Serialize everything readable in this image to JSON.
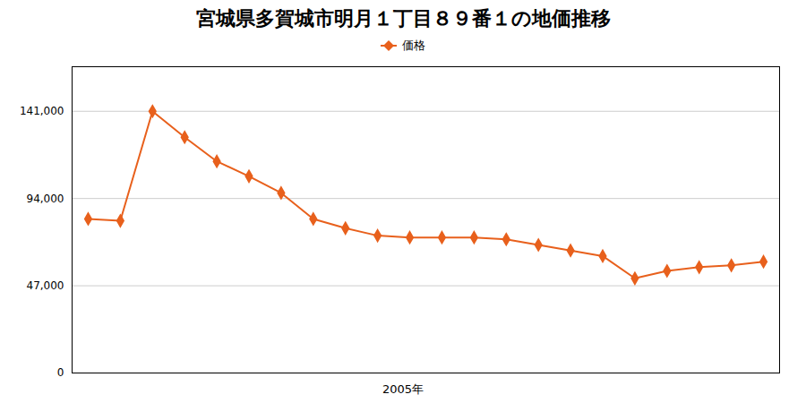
{
  "chart_data": {
    "type": "line",
    "title": "宮城県多賀城市明月１丁目８９番１の地価推移",
    "xlabel": "2005年",
    "x": [
      1993,
      1994,
      1995,
      1996,
      1997,
      1998,
      1999,
      2000,
      2001,
      2002,
      2003,
      2004,
      2005,
      2006,
      2007,
      2008,
      2009,
      2010,
      2011,
      2012,
      2013,
      2014
    ],
    "series": [
      {
        "name": "価格",
        "color": "#E8601C",
        "marker": "diamond",
        "values": [
          83000,
          82000,
          141000,
          127000,
          114000,
          106000,
          97000,
          83000,
          78000,
          74000,
          73000,
          73000,
          73000,
          72000,
          69000,
          66000,
          63000,
          51000,
          55000,
          57000,
          58000,
          60000
        ]
      }
    ],
    "xlim": [
      1992.5,
      2014.5
    ],
    "xticks": [],
    "ylim": [
      0,
      165000
    ],
    "yticks": [
      0,
      {
        "value": 47000,
        "label": "47,000"
      },
      {
        "value": 94000,
        "label": "94,000"
      },
      {
        "value": 141000,
        "label": "141,000"
      }
    ],
    "grid": true,
    "legend": "upper center",
    "tick_labels": "y"
  }
}
